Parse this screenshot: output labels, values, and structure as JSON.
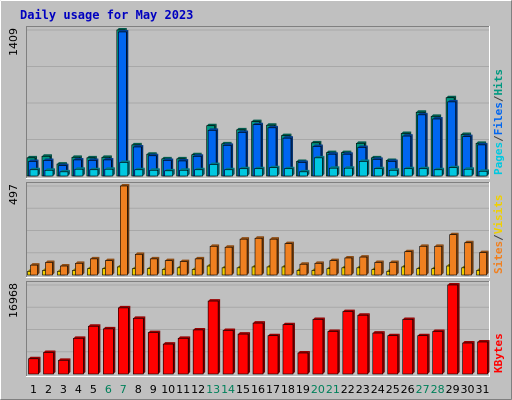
{
  "chart_data": [
    {
      "type": "bar",
      "title": "Daily usage for May 2023",
      "panel": "pages-files-hits",
      "ymax_label": "1409",
      "ylim": [
        0,
        1409
      ],
      "categories": [
        "1",
        "2",
        "3",
        "4",
        "5",
        "6",
        "7",
        "8",
        "9",
        "10",
        "11",
        "12",
        "13",
        "14",
        "15",
        "16",
        "17",
        "18",
        "19",
        "20",
        "21",
        "22",
        "23",
        "24",
        "25",
        "26",
        "27",
        "28",
        "29",
        "30",
        "31"
      ],
      "weekend_days": [
        "6",
        "7",
        "13",
        "14",
        "20",
        "21",
        "27",
        "28"
      ],
      "series": [
        {
          "name": "Hits",
          "color": "#009980",
          "values": [
            175,
            190,
            115,
            180,
            175,
            180,
            1409,
            300,
            210,
            165,
            165,
            205,
            485,
            310,
            445,
            525,
            490,
            390,
            140,
            320,
            225,
            225,
            315,
            175,
            150,
            410,
            615,
            575,
            755,
            400,
            315
          ]
        },
        {
          "name": "Files",
          "color": "#0066f0",
          "values": [
            140,
            150,
            100,
            155,
            150,
            155,
            1390,
            280,
            195,
            150,
            145,
            190,
            440,
            295,
            420,
            495,
            465,
            365,
            130,
            285,
            210,
            210,
            275,
            160,
            140,
            385,
            590,
            550,
            715,
            380,
            300
          ]
        },
        {
          "name": "Pages",
          "color": "#00c8e0",
          "values": [
            60,
            55,
            40,
            65,
            60,
            65,
            130,
            60,
            55,
            50,
            55,
            60,
            110,
            60,
            70,
            70,
            80,
            70,
            40,
            175,
            75,
            75,
            140,
            70,
            55,
            70,
            70,
            60,
            80,
            65,
            45
          ]
        }
      ],
      "ylabels": [
        {
          "text": "Pages",
          "color": "#00c8e0"
        },
        {
          "text": "/",
          "color": "#404040"
        },
        {
          "text": "Files",
          "color": "#0066f0"
        },
        {
          "text": "/",
          "color": "#404040"
        },
        {
          "text": "Hits",
          "color": "#009980"
        }
      ]
    },
    {
      "type": "bar",
      "panel": "sites-visits",
      "ymax_label": "497",
      "ylim": [
        0,
        497
      ],
      "categories": [
        "1",
        "2",
        "3",
        "4",
        "5",
        "6",
        "7",
        "8",
        "9",
        "10",
        "11",
        "12",
        "13",
        "14",
        "15",
        "16",
        "17",
        "18",
        "19",
        "20",
        "21",
        "22",
        "23",
        "24",
        "25",
        "26",
        "27",
        "28",
        "29",
        "30",
        "31"
      ],
      "series": [
        {
          "name": "Visits",
          "color": "#f0d000",
          "values": [
            20,
            25,
            20,
            25,
            35,
            35,
            45,
            35,
            35,
            30,
            40,
            30,
            50,
            40,
            40,
            45,
            45,
            45,
            25,
            25,
            35,
            40,
            40,
            30,
            20,
            45,
            35,
            35,
            50,
            40,
            25
          ]
        },
        {
          "name": "Sites",
          "color": "#f08020",
          "values": [
            55,
            70,
            50,
            65,
            90,
            80,
            497,
            115,
            90,
            80,
            75,
            90,
            160,
            155,
            200,
            205,
            200,
            175,
            60,
            65,
            80,
            95,
            100,
            70,
            70,
            130,
            160,
            160,
            225,
            180,
            125
          ]
        }
      ],
      "ylabels": [
        {
          "text": "Sites",
          "color": "#f08020"
        },
        {
          "text": "/",
          "color": "#404040"
        },
        {
          "text": "Visits",
          "color": "#f0d000"
        }
      ]
    },
    {
      "type": "bar",
      "panel": "kbytes",
      "ymax_label": "16968",
      "ylim": [
        0,
        16968
      ],
      "categories": [
        "1",
        "2",
        "3",
        "4",
        "5",
        "6",
        "7",
        "8",
        "9",
        "10",
        "11",
        "12",
        "13",
        "14",
        "15",
        "16",
        "17",
        "18",
        "19",
        "20",
        "21",
        "22",
        "23",
        "24",
        "25",
        "26",
        "27",
        "28",
        "29",
        "30",
        "31"
      ],
      "series": [
        {
          "name": "KBytes",
          "color": "#ff0000",
          "values": [
            2900,
            4100,
            2600,
            6800,
            9100,
            8600,
            12600,
            10600,
            7900,
            5700,
            6800,
            8400,
            13900,
            8300,
            7600,
            9700,
            7300,
            9400,
            4000,
            10400,
            8100,
            11900,
            11200,
            7800,
            7300,
            10400,
            7300,
            8100,
            16968,
            5900,
            6100
          ]
        }
      ],
      "ylabels": [
        {
          "text": "KBytes",
          "color": "#ff0000"
        }
      ]
    }
  ]
}
